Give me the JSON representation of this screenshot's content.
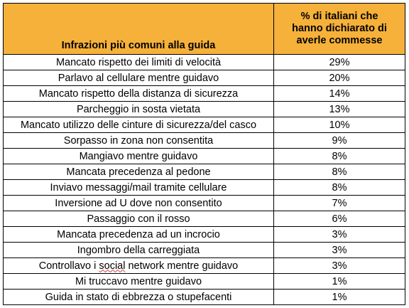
{
  "chart_data": {
    "type": "table",
    "columns": [
      "Infrazioni più comuni alla guida",
      "% di italiani che hanno dichiarato di averle commesse"
    ],
    "header_lines": [
      "% di italiani che",
      "hanno dichiarato di",
      "averle commesse"
    ],
    "rows": [
      {
        "label": "Mancato rispetto dei limiti di velocità",
        "value": "29%"
      },
      {
        "label": "Parlavo al cellulare mentre guidavo",
        "value": "20%"
      },
      {
        "label": "Mancato rispetto della distanza di sicurezza",
        "value": "14%"
      },
      {
        "label": "Parcheggio in sosta vietata",
        "value": "13%"
      },
      {
        "label": "Mancato utilizzo delle cinture di sicurezza/del casco",
        "value": "10%"
      },
      {
        "label": "Sorpasso in zona non consentita",
        "value": "9%"
      },
      {
        "label": "Mangiavo mentre guidavo",
        "value": "8%"
      },
      {
        "label": "Mancata precedenza al pedone",
        "value": "8%"
      },
      {
        "label": "Inviavo messaggi/mail tramite cellulare",
        "value": "8%"
      },
      {
        "label": "Inversione ad U dove non consentito",
        "value": "7%"
      },
      {
        "label": "Passaggio con il rosso",
        "value": "6%"
      },
      {
        "label": "Mancata precedenza ad un incrocio",
        "value": "3%"
      },
      {
        "label": "Ingombro della carreggiata",
        "value": "3%"
      },
      {
        "label": "Controllavo i social network mentre guidavo",
        "value": "3%"
      },
      {
        "label": "Mi truccavo mentre guidavo",
        "value": "1%"
      },
      {
        "label": "Guida in stato di ebbrezza o stupefacenti",
        "value": "1%"
      }
    ],
    "header_color": "#f6b13a"
  }
}
